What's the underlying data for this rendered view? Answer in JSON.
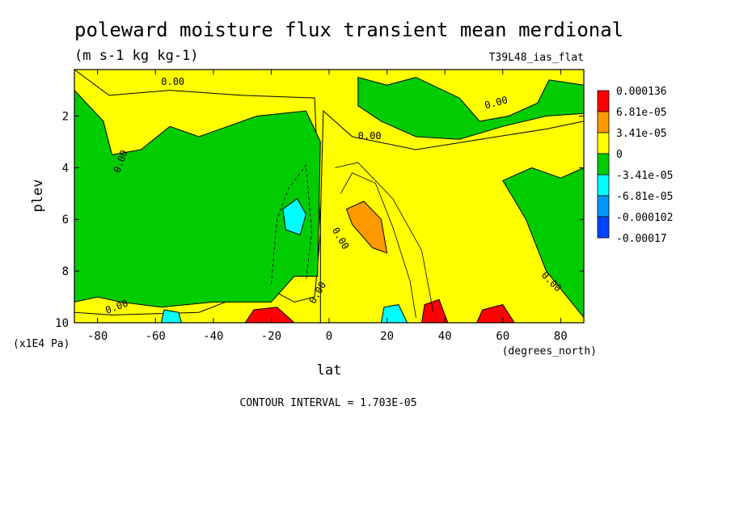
{
  "chart_data": {
    "type": "contour",
    "title": "poleward moisture flux transient mean merdional",
    "subtitle": "(m s-1 kg kg-1)",
    "dataset_label": "T39L48_ias_flat",
    "xlabel": "lat",
    "xunits": "(degrees_north)",
    "ylabel": "plev",
    "yunits": "(x1E4 Pa)",
    "xlim": [
      -88,
      88
    ],
    "ylim": [
      10,
      0.2
    ],
    "x_ticks": [
      -80,
      -60,
      -40,
      -20,
      0,
      20,
      40,
      60,
      80
    ],
    "x_tick_labels": [
      "-80",
      "-60",
      "-40",
      "-20",
      "0",
      "20",
      "40",
      "60",
      "80"
    ],
    "y_ticks": [
      2,
      4,
      6,
      8,
      10
    ],
    "y_tick_labels": [
      "2",
      "4",
      "6",
      "8",
      "10"
    ],
    "contour_interval_text": "CONTOUR INTERVAL = 1.703E-05",
    "contour_labels": [
      "0.00",
      "0.00",
      "0.00",
      "0.00",
      "0.00",
      "0.00",
      "0.00",
      "0.00"
    ],
    "colorbar": {
      "labels": [
        "0.000136",
        "6.81e-05",
        "3.41e-05",
        "0",
        "-3.41e-05",
        "-6.81e-05",
        "-0.000102",
        "-0.00017"
      ],
      "colors": [
        "#ff0000",
        "#ff9900",
        "#ffff00",
        "#00cc00",
        "#00ffff",
        "#0099ff",
        "#0044ff"
      ]
    },
    "regions": [
      {
        "name": "moist-positive-sh-upper",
        "level": "0 to 3.41e-05",
        "color": "#ffff00",
        "pts": [
          [
            -88,
            0.2
          ],
          [
            -76,
            1.2
          ],
          [
            -55,
            1.0
          ],
          [
            -30,
            1.2
          ],
          [
            -5,
            1.3
          ],
          [
            -3,
            6.5
          ],
          [
            -5,
            9.0
          ],
          [
            -12,
            9.2
          ],
          [
            -22,
            8.6
          ],
          [
            -45,
            9.6
          ],
          [
            -75,
            9.7
          ],
          [
            -88,
            9.6
          ]
        ]
      },
      {
        "name": "moist-positive-nh",
        "level": "0 to 3.41e-05",
        "color": "#ffff00",
        "pts": [
          [
            -2,
            1.8
          ],
          [
            8,
            2.8
          ],
          [
            30,
            3.3
          ],
          [
            58,
            2.8
          ],
          [
            75,
            2.5
          ],
          [
            88,
            2.2
          ],
          [
            88,
            10
          ],
          [
            -3,
            10
          ],
          [
            -3,
            6.0
          ]
        ]
      },
      {
        "name": "moist-negative-sh",
        "level": "-3.41e-05 to 0",
        "color": "#00cc00",
        "pts": [
          [
            -88,
            1.0
          ],
          [
            -78,
            2.2
          ],
          [
            -75,
            3.5
          ],
          [
            -65,
            3.3
          ],
          [
            -55,
            2.4
          ],
          [
            -45,
            2.8
          ],
          [
            -25,
            2.0
          ],
          [
            -8,
            1.8
          ],
          [
            -3,
            3.0
          ],
          [
            -4,
            8.2
          ],
          [
            -12,
            8.2
          ],
          [
            -20,
            9.2
          ],
          [
            -40,
            9.2
          ],
          [
            -58,
            9.4
          ],
          [
            -72,
            9.2
          ],
          [
            -80,
            9.0
          ],
          [
            -88,
            9.2
          ]
        ]
      },
      {
        "name": "moist-negative-nh-upper",
        "level": "-3.41e-05 to 0",
        "color": "#00cc00",
        "pts": [
          [
            10,
            0.5
          ],
          [
            20,
            0.8
          ],
          [
            30,
            0.5
          ],
          [
            45,
            1.3
          ],
          [
            52,
            2.2
          ],
          [
            62,
            2.0
          ],
          [
            72,
            1.5
          ],
          [
            76,
            0.6
          ],
          [
            88,
            0.8
          ],
          [
            88,
            1.9
          ],
          [
            75,
            2.0
          ],
          [
            60,
            2.4
          ],
          [
            45,
            2.9
          ],
          [
            30,
            2.8
          ],
          [
            18,
            2.2
          ],
          [
            10,
            1.6
          ]
        ]
      },
      {
        "name": "moist-negative-nh-lower",
        "level": "-3.41e-05 to 0",
        "color": "#00cc00",
        "pts": [
          [
            60,
            4.5
          ],
          [
            70,
            4.0
          ],
          [
            80,
            4.4
          ],
          [
            88,
            4.0
          ],
          [
            88,
            9.8
          ],
          [
            75,
            8.0
          ],
          [
            68,
            6.0
          ]
        ]
      },
      {
        "name": "moist-orange-midlat",
        "level": "3.41e-05 to 6.81e-05",
        "color": "#ff9900",
        "pts": [
          [
            6,
            5.6
          ],
          [
            12,
            5.3
          ],
          [
            18,
            6.0
          ],
          [
            20,
            7.3
          ],
          [
            15,
            7.1
          ],
          [
            8,
            6.2
          ]
        ]
      },
      {
        "name": "moist-cyan-sh-mid",
        "level": "-6.81e-05 to -3.41e-05",
        "color": "#00ffff",
        "pts": [
          [
            -16,
            5.6
          ],
          [
            -11,
            5.2
          ],
          [
            -8,
            5.8
          ],
          [
            -10,
            6.6
          ],
          [
            -15,
            6.4
          ]
        ]
      },
      {
        "name": "moist-red-35n",
        "level": ">= 6.81e-05",
        "color": "#ff0000",
        "pts": [
          [
            32,
            10
          ],
          [
            33,
            9.3
          ],
          [
            38,
            9.1
          ],
          [
            41,
            10
          ]
        ]
      },
      {
        "name": "moist-red-58n",
        "level": ">= 6.81e-05",
        "color": "#ff0000",
        "pts": [
          [
            51,
            10
          ],
          [
            53,
            9.5
          ],
          [
            60,
            9.3
          ],
          [
            64,
            10
          ]
        ]
      },
      {
        "name": "moist-red-20s",
        "level": ">= 6.81e-05",
        "color": "#ff0000",
        "pts": [
          [
            -29,
            10
          ],
          [
            -26,
            9.5
          ],
          [
            -18,
            9.4
          ],
          [
            -12,
            10
          ]
        ]
      },
      {
        "name": "moist-cyan-20n",
        "level": "-6.81e-05 to -3.41e-05",
        "color": "#00ffff",
        "pts": [
          [
            18,
            10
          ],
          [
            19,
            9.4
          ],
          [
            24,
            9.3
          ],
          [
            27,
            10
          ]
        ]
      },
      {
        "name": "moist-cyan-55s",
        "level": "-6.81e-05 to -3.41e-05",
        "color": "#00ffff",
        "pts": [
          [
            -58,
            10
          ],
          [
            -57,
            9.5
          ],
          [
            -52,
            9.6
          ],
          [
            -51,
            10
          ]
        ]
      }
    ]
  }
}
